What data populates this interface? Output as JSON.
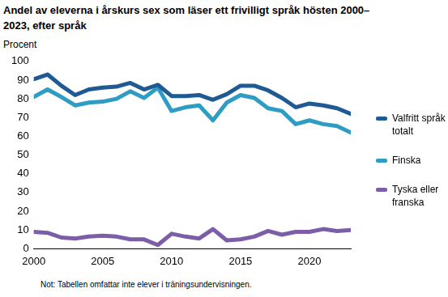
{
  "chart_data": {
    "type": "line",
    "title": "Andel av eleverna i årskurs sex som läser ett frivilligt språk hösten 2000–2023, efter språk",
    "y_label": "Procent",
    "note": "Not: Tabellen omfattar inte elever i träningsundervisningen.",
    "x": [
      2000,
      2001,
      2002,
      2003,
      2004,
      2005,
      2006,
      2007,
      2008,
      2009,
      2010,
      2011,
      2012,
      2013,
      2014,
      2015,
      2016,
      2017,
      2018,
      2019,
      2020,
      2021,
      2022,
      2023
    ],
    "series": [
      {
        "name": "Valfritt språk totalt",
        "color": "#1f5a94",
        "values": [
          90.5,
          93,
          87,
          82,
          85,
          86,
          86.5,
          88.5,
          85,
          87.5,
          81.5,
          81.5,
          82,
          79.5,
          82.5,
          87,
          87,
          84.5,
          80.5,
          75.5,
          77.5,
          76.5,
          75,
          72
        ]
      },
      {
        "name": "Finska",
        "color": "#2e9cc3",
        "values": [
          81,
          85,
          81,
          76.5,
          78,
          78.5,
          80,
          84,
          80.5,
          86,
          73.5,
          75.5,
          76.5,
          68.5,
          78,
          82,
          80.5,
          75,
          73.5,
          66.5,
          68.5,
          66.5,
          65.5,
          62
        ]
      },
      {
        "name": "Tyska eller franska",
        "color": "#7b5ea7",
        "values": [
          9,
          8.5,
          6,
          5.5,
          6.5,
          7,
          6.5,
          5,
          5,
          2,
          8,
          6.5,
          5.5,
          10.5,
          4.5,
          5,
          6.5,
          9.5,
          7.5,
          9,
          9,
          10.5,
          9.5,
          10
        ]
      }
    ],
    "xlim": [
      2000,
      2023
    ],
    "xticks": [
      2000,
      2005,
      2010,
      2015,
      2020
    ],
    "ylim": [
      0,
      100
    ],
    "yticks": [
      0,
      10,
      20,
      30,
      40,
      50,
      60,
      70,
      80,
      90,
      100
    ],
    "grid": false,
    "legend": "right"
  }
}
